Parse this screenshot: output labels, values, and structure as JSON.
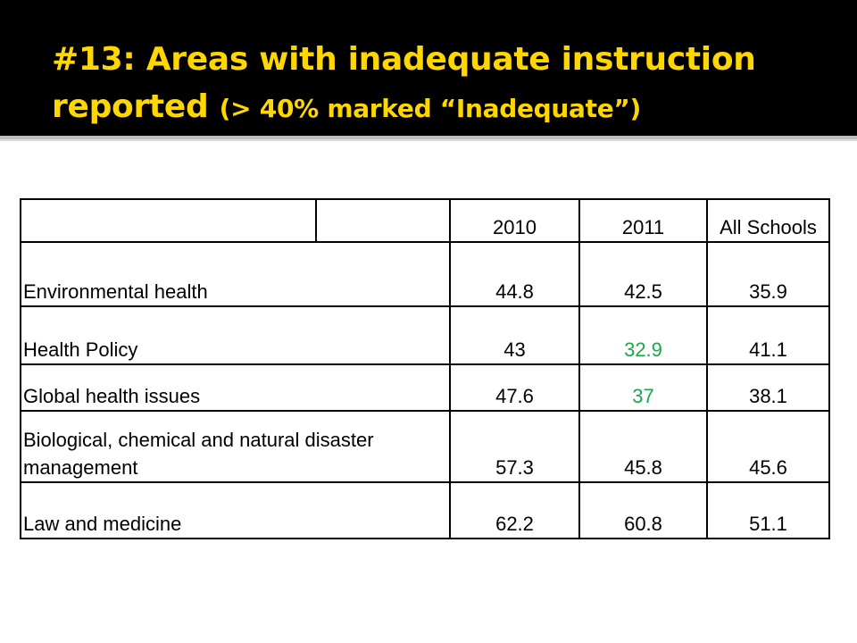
{
  "slide": {
    "title_line1": "#13: Areas with inadequate instruction",
    "title_line2_prefix": "reported ",
    "title_line2_small": "(> 40% marked “Inadequate”)",
    "title_color": "#ffd700"
  },
  "table": {
    "headers": [
      "",
      "",
      "2010",
      "2011",
      "All Schools"
    ],
    "rows": [
      {
        "label": "Environmental health",
        "values": [
          "44.8",
          "42.5",
          "35.9"
        ]
      },
      {
        "label": "Health Policy",
        "values": [
          "43",
          "32.9",
          "41.1"
        ]
      },
      {
        "label": "Global health issues",
        "values": [
          "47.6",
          "37",
          "38.1"
        ]
      },
      {
        "label": "Biological, chemical and natural disaster management",
        "values": [
          "57.3",
          "45.8",
          "45.6"
        ]
      },
      {
        "label": "Law and medicine",
        "values": [
          "62.2",
          "60.8",
          "51.1"
        ]
      }
    ],
    "highlight_color": "#1aa84a"
  }
}
